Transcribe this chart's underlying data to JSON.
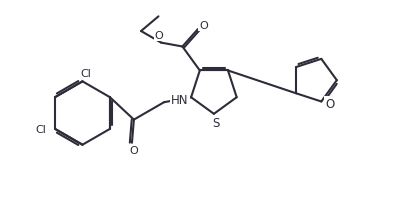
{
  "line_color": "#2d2d3a",
  "bg_color": "#ffffff",
  "bond_lw": 1.5,
  "figsize": [
    3.93,
    2.01
  ],
  "dpi": 100,
  "xlim": [
    0.0,
    10.0
  ],
  "ylim": [
    0.0,
    5.2
  ]
}
